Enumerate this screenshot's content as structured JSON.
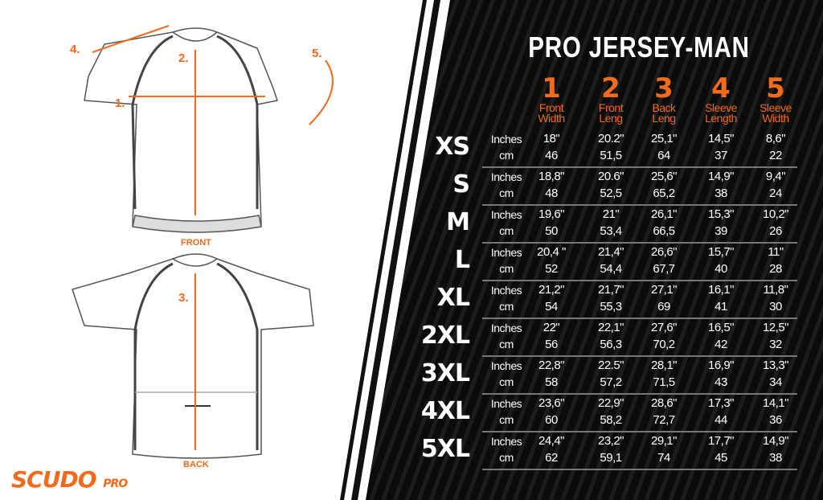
{
  "title": "PRO JERSEY-MAN",
  "columns": [
    {
      "num": "1",
      "label1": "Front",
      "label2": "Width"
    },
    {
      "num": "2",
      "label1": "Front",
      "label2": "Leng"
    },
    {
      "num": "3",
      "label1": "Back",
      "label2": "Leng"
    },
    {
      "num": "4",
      "label1": "Sleeve",
      "label2": "Length"
    },
    {
      "num": "5",
      "label1": "Sleeve",
      "label2": "Width"
    }
  ],
  "units": {
    "inches": "Inches",
    "cm": "cm"
  },
  "rows": [
    {
      "size": "XS",
      "in": [
        "18\"",
        "20.2\"",
        "25,1\"",
        "14,5\"",
        "8,6\""
      ],
      "cm": [
        "46",
        "51,5",
        "64",
        "37",
        "22"
      ]
    },
    {
      "size": "S",
      "in": [
        "18,8\"",
        "20.6\"",
        "25,6\"",
        "14,9\"",
        "9,4\""
      ],
      "cm": [
        "48",
        "52,5",
        "65,2",
        "38",
        "24"
      ]
    },
    {
      "size": "M",
      "in": [
        "19,6\"",
        "21\"",
        "26,1\"",
        "15,3\"",
        "10,2\""
      ],
      "cm": [
        "50",
        "53,4",
        "66,5",
        "39",
        "26"
      ]
    },
    {
      "size": "L",
      "in": [
        "20,4 \"",
        "21,4\"",
        "26,6\"",
        "15,7\"",
        "11\""
      ],
      "cm": [
        "52",
        "54,4",
        "67,7",
        "40",
        "28"
      ]
    },
    {
      "size": "XL",
      "in": [
        "21,2\"",
        "21,7\"",
        "27,1\"",
        "16,1\"",
        "11,8\""
      ],
      "cm": [
        "54",
        "55,3",
        "69",
        "41",
        "30"
      ]
    },
    {
      "size": "2XL",
      "in": [
        "22\"",
        "22,1\"",
        "27,6\"",
        "16,5\"",
        "12,5\""
      ],
      "cm": [
        "56",
        "56,3",
        "70,2",
        "42",
        "32"
      ]
    },
    {
      "size": "3XL",
      "in": [
        "22,8\"",
        "22.5\"",
        "28,1\"",
        "16,9\"",
        "13,3\""
      ],
      "cm": [
        "58",
        "57,2",
        "71,5",
        "43",
        "34"
      ]
    },
    {
      "size": "4XL",
      "in": [
        "23,6\"",
        "22,9\"",
        "28,6\"",
        "17,3\"",
        "14,1\""
      ],
      "cm": [
        "60",
        "58,2",
        "72,7",
        "44",
        "36"
      ]
    },
    {
      "size": "5XL",
      "in": [
        "24,4\"",
        "23,2\"",
        "29,1\"",
        "17,7\"",
        "14,9\""
      ],
      "cm": [
        "62",
        "59,1",
        "74",
        "45",
        "38"
      ]
    }
  ],
  "diagram": {
    "m1": "1.",
    "m2": "2.",
    "m3": "3.",
    "m4": "4.",
    "m5": "5.",
    "front": "FRONT",
    "back": "BACK"
  },
  "logo": {
    "main": "SCUDO",
    "sub": "PRO"
  },
  "colors": {
    "accent": "#f26a1b",
    "panel": "#0a0a0a"
  }
}
